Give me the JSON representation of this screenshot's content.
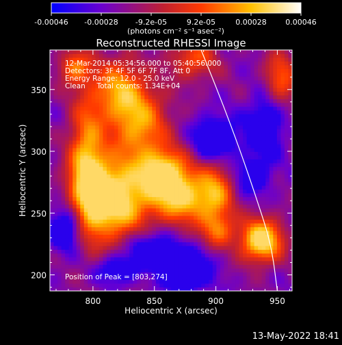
{
  "chart_data": {
    "type": "heatmap",
    "title": "Reconstructed RHESSI Image",
    "xlabel": "Heliocentric X (arcsec)",
    "ylabel": "Heliocentric Y (arcsec)",
    "xlim": [
      765,
      962
    ],
    "ylim": [
      187,
      382
    ],
    "x_ticks": [
      800,
      850,
      900,
      950
    ],
    "y_ticks": [
      200,
      250,
      300,
      350
    ],
    "grid": false,
    "colorbar": {
      "ticks": [
        "-0.00046",
        "-0.00028",
        "-9.2e-05",
        "9.2e-05",
        "0.00028",
        "0.00046"
      ],
      "unit_label": "(photons cm⁻² s⁻¹ asec⁻²)",
      "range": [
        -0.00046,
        0.00046
      ],
      "colors": [
        "#0000ff",
        "#6a00d0",
        "#c02030",
        "#ff3a00",
        "#ffc000",
        "#ffffff"
      ]
    },
    "annotations": [
      "12-Mar-2014 05:34:56.000 to 05:40:56.000",
      "Detectors: 3F 4F 5F 6F 7F 8F, Att 0",
      "Energy Range: 12.0 - 25.0 keV",
      "Clean     Total counts: 1.34E+04"
    ],
    "peak_label": "Position of Peak = [803,274]",
    "peak": {
      "x": 803,
      "y": 274
    },
    "limb_curve": [
      [
        888,
        382
      ],
      [
        905,
        340
      ],
      [
        920,
        300
      ],
      [
        933,
        262
      ],
      [
        945,
        225
      ],
      [
        950,
        187
      ]
    ],
    "sources": [
      {
        "x": 815,
        "y": 262,
        "sx": 20,
        "sy": 22,
        "amp": 1.0
      },
      {
        "x": 795,
        "y": 290,
        "sx": 10,
        "sy": 38,
        "amp": 0.65
      },
      {
        "x": 838,
        "y": 322,
        "sx": 16,
        "sy": 22,
        "amp": 0.6
      },
      {
        "x": 858,
        "y": 283,
        "sx": 14,
        "sy": 13,
        "amp": 0.78
      },
      {
        "x": 873,
        "y": 262,
        "sx": 18,
        "sy": 14,
        "amp": 0.72
      },
      {
        "x": 820,
        "y": 350,
        "sx": 14,
        "sy": 18,
        "amp": 0.55
      },
      {
        "x": 900,
        "y": 267,
        "sx": 10,
        "sy": 18,
        "amp": 0.48
      },
      {
        "x": 902,
        "y": 236,
        "sx": 10,
        "sy": 10,
        "amp": 0.42
      },
      {
        "x": 937,
        "y": 228,
        "sx": 12,
        "sy": 12,
        "amp": 0.92
      },
      {
        "x": 882,
        "y": 375,
        "sx": 14,
        "sy": 12,
        "amp": 0.42
      },
      {
        "x": 953,
        "y": 360,
        "sx": 9,
        "sy": 16,
        "amp": 0.45
      },
      {
        "x": 785,
        "y": 368,
        "sx": 9,
        "sy": 10,
        "amp": 0.5
      }
    ],
    "negatives": [
      {
        "x": 875,
        "y": 205,
        "sx": 14,
        "sy": 12,
        "amp": 0.55
      },
      {
        "x": 900,
        "y": 310,
        "sx": 12,
        "sy": 12,
        "amp": 0.5
      },
      {
        "x": 940,
        "y": 320,
        "sx": 10,
        "sy": 16,
        "amp": 0.45
      },
      {
        "x": 780,
        "y": 240,
        "sx": 10,
        "sy": 14,
        "amp": 0.5
      },
      {
        "x": 845,
        "y": 222,
        "sx": 12,
        "sy": 10,
        "amp": 0.4
      },
      {
        "x": 930,
        "y": 280,
        "sx": 10,
        "sy": 10,
        "amp": 0.35
      },
      {
        "x": 820,
        "y": 205,
        "sx": 12,
        "sy": 8,
        "amp": 0.35
      }
    ]
  },
  "footer": {
    "timestamp": "13-May-2022 18:41"
  }
}
